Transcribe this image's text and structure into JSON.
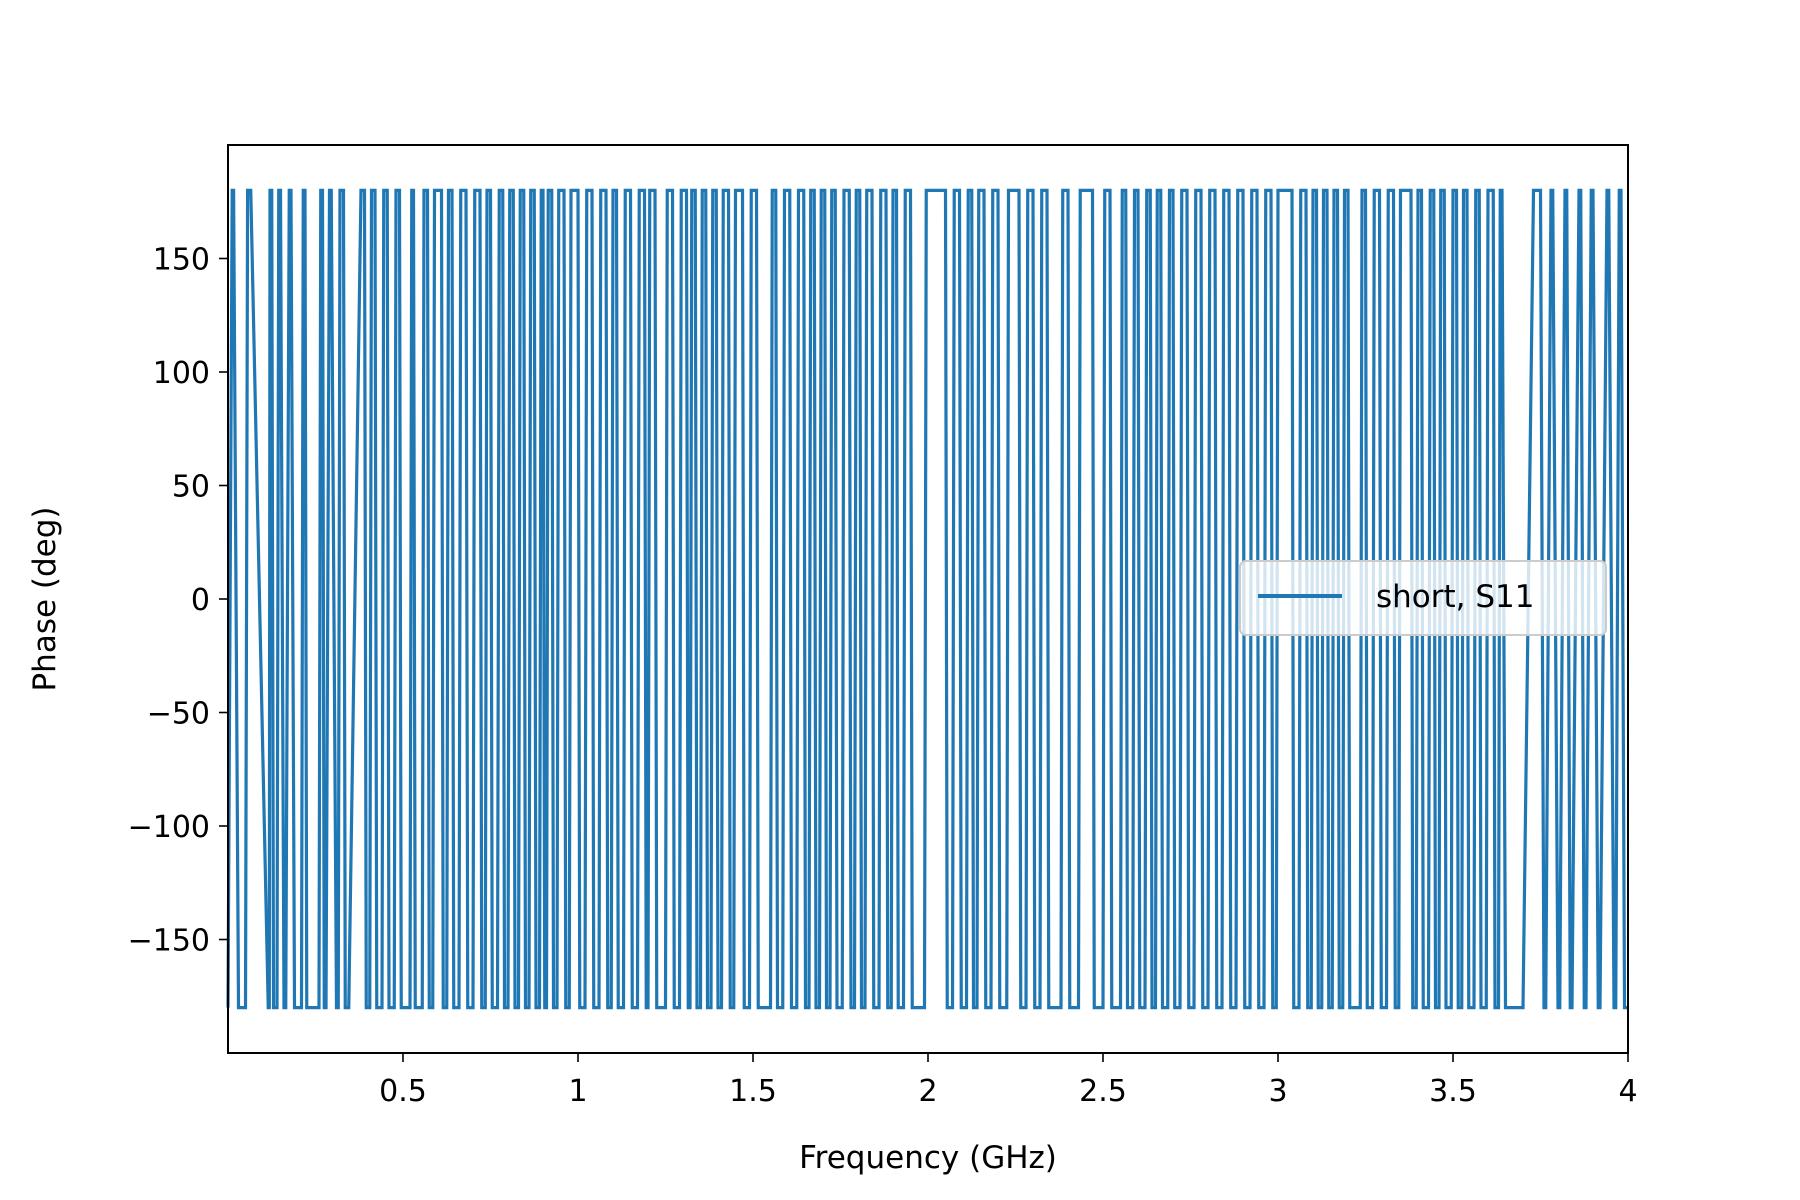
{
  "chart_data": {
    "type": "line",
    "title": "",
    "xlabel": "Frequency (GHz)",
    "ylabel": "Phase (deg)",
    "xlim": [
      0.0,
      4.0
    ],
    "ylim": [
      -200,
      200
    ],
    "x_ticks": [
      {
        "value": 0.5,
        "label": "0.5"
      },
      {
        "value": 1.0,
        "label": "1"
      },
      {
        "value": 1.5,
        "label": "1.5"
      },
      {
        "value": 2.0,
        "label": "2"
      },
      {
        "value": 2.5,
        "label": "2.5"
      },
      {
        "value": 3.0,
        "label": "3"
      },
      {
        "value": 3.5,
        "label": "3.5"
      },
      {
        "value": 4.0,
        "label": "4"
      }
    ],
    "y_ticks": [
      {
        "value": 150,
        "label": "150"
      },
      {
        "value": 100,
        "label": "100"
      },
      {
        "value": 50,
        "label": "50"
      },
      {
        "value": 0,
        "label": "0"
      },
      {
        "value": -50,
        "label": "−50"
      },
      {
        "value": -100,
        "label": "−100"
      },
      {
        "value": -150,
        "label": "−150"
      }
    ],
    "grid": false,
    "legend": {
      "placement": "center-right"
    },
    "series": [
      {
        "name": "short, S11",
        "color": "#1f77b4",
        "x": [
          0.0,
          0.012,
          0.016,
          0.03,
          0.05,
          0.056,
          0.065,
          0.115,
          0.118,
          0.12,
          0.125,
          0.13,
          0.14,
          0.145,
          0.15,
          0.16,
          0.165,
          0.175,
          0.18,
          0.19,
          0.21,
          0.215,
          0.22,
          0.225,
          0.26,
          0.265,
          0.27,
          0.275,
          0.28,
          0.29,
          0.295,
          0.31,
          0.315,
          0.32,
          0.33,
          0.335,
          0.345,
          0.38,
          0.39,
          0.395,
          0.405,
          0.41,
          0.42,
          0.425,
          0.44,
          0.445,
          0.455,
          0.46,
          0.475,
          0.48,
          0.49,
          0.495,
          0.52,
          0.525,
          0.53,
          0.535,
          0.555,
          0.56,
          0.57,
          0.575,
          0.585,
          0.59,
          0.61,
          0.615,
          0.625,
          0.63,
          0.64,
          0.645,
          0.66,
          0.665,
          0.68,
          0.685,
          0.7,
          0.705,
          0.72,
          0.725,
          0.735,
          0.74,
          0.75,
          0.755,
          0.77,
          0.775,
          0.785,
          0.79,
          0.8,
          0.805,
          0.815,
          0.82,
          0.83,
          0.835,
          0.845,
          0.85,
          0.86,
          0.865,
          0.875,
          0.88,
          0.89,
          0.895,
          0.9,
          0.905,
          0.91,
          0.915,
          0.925,
          0.93,
          0.94,
          0.945,
          0.96,
          0.965,
          0.975,
          0.98,
          1.0,
          1.005,
          1.02,
          1.025,
          1.04,
          1.045,
          1.06,
          1.065,
          1.08,
          1.085,
          1.095,
          1.1,
          1.11,
          1.115,
          1.13,
          1.135,
          1.15,
          1.155,
          1.17,
          1.175,
          1.19,
          1.195,
          1.2,
          1.205,
          1.22,
          1.225,
          1.25,
          1.255,
          1.27,
          1.275,
          1.29,
          1.295,
          1.31,
          1.315,
          1.32,
          1.325,
          1.335,
          1.34,
          1.35,
          1.355,
          1.365,
          1.37,
          1.38,
          1.385,
          1.395,
          1.4,
          1.41,
          1.415,
          1.43,
          1.435,
          1.445,
          1.45,
          1.47,
          1.475,
          1.49,
          1.495,
          1.51,
          1.515,
          1.55,
          1.555,
          1.565,
          1.57,
          1.585,
          1.59,
          1.605,
          1.61,
          1.625,
          1.63,
          1.645,
          1.65,
          1.66,
          1.665,
          1.675,
          1.68,
          1.69,
          1.695,
          1.705,
          1.71,
          1.72,
          1.725,
          1.735,
          1.74,
          1.755,
          1.76,
          1.775,
          1.78,
          1.79,
          1.795,
          1.805,
          1.81,
          1.82,
          1.825,
          1.84,
          1.845,
          1.86,
          1.865,
          1.88,
          1.885,
          1.895,
          1.9,
          1.91,
          1.915,
          1.93,
          1.935,
          1.95,
          1.955,
          1.99,
          1.995,
          2.05,
          2.055,
          2.07,
          2.075,
          2.09,
          2.095,
          2.11,
          2.115,
          2.125,
          2.13,
          2.14,
          2.145,
          2.16,
          2.165,
          2.18,
          2.185,
          2.2,
          2.205,
          2.225,
          2.23,
          2.26,
          2.265,
          2.28,
          2.285,
          2.3,
          2.305,
          2.32,
          2.325,
          2.34,
          2.345,
          2.38,
          2.385,
          2.4,
          2.405,
          2.43,
          2.435,
          2.47,
          2.475,
          2.5,
          2.505,
          2.52,
          2.525,
          2.55,
          2.555,
          2.565,
          2.57,
          2.585,
          2.59,
          2.6,
          2.605,
          2.62,
          2.625,
          2.635,
          2.64,
          2.65,
          2.655,
          2.665,
          2.67,
          2.685,
          2.69,
          2.7,
          2.705,
          2.72,
          2.725,
          2.74,
          2.745,
          2.76,
          2.765,
          2.78,
          2.785,
          2.8,
          2.805,
          2.82,
          2.825,
          2.84,
          2.845,
          2.86,
          2.865,
          2.88,
          2.885,
          2.9,
          2.905,
          2.92,
          2.925,
          2.94,
          2.945,
          2.96,
          2.965,
          2.98,
          2.985,
          2.995,
          3.0,
          3.04,
          3.045,
          3.06,
          3.065,
          3.08,
          3.085,
          3.095,
          3.1,
          3.11,
          3.115,
          3.125,
          3.13,
          3.14,
          3.145,
          3.155,
          3.16,
          3.17,
          3.175,
          3.185,
          3.19,
          3.2,
          3.205,
          3.235,
          3.24,
          3.25,
          3.255,
          3.27,
          3.275,
          3.29,
          3.295,
          3.31,
          3.315,
          3.33,
          3.335,
          3.345,
          3.35,
          3.38,
          3.385,
          3.395,
          3.4,
          3.41,
          3.415,
          3.43,
          3.435,
          3.445,
          3.45,
          3.46,
          3.465,
          3.475,
          3.48,
          3.495,
          3.5,
          3.51,
          3.515,
          3.525,
          3.53,
          3.54,
          3.545,
          3.56,
          3.565,
          3.575,
          3.58,
          3.595,
          3.6,
          3.615,
          3.62,
          3.63,
          3.635,
          3.64,
          3.65,
          3.7,
          3.73,
          3.75,
          3.76,
          3.765,
          3.78,
          3.785,
          3.8,
          3.805,
          3.82,
          3.825,
          3.835,
          3.84,
          3.86,
          3.865,
          3.875,
          3.88,
          3.895,
          3.9,
          3.915,
          3.92,
          3.94,
          3.945,
          3.96,
          3.965,
          3.975,
          3.98,
          3.99,
          4.0
        ],
        "y": [
          -180,
          180,
          180,
          -180,
          -180,
          180,
          180,
          -180,
          -180,
          180,
          180,
          -180,
          -180,
          180,
          180,
          -180,
          -180,
          180,
          180,
          -180,
          -180,
          180,
          180,
          -180,
          -180,
          180,
          180,
          -180,
          -180,
          180,
          180,
          -180,
          -180,
          180,
          180,
          -180,
          -180,
          180,
          180,
          -180,
          -180,
          180,
          180,
          -180,
          -180,
          180,
          180,
          -180,
          -180,
          180,
          180,
          -180,
          -180,
          180,
          180,
          -180,
          -180,
          180,
          180,
          -180,
          -180,
          180,
          180,
          -180,
          -180,
          180,
          180,
          -180,
          -180,
          180,
          180,
          -180,
          -180,
          180,
          180,
          -180,
          -180,
          180,
          180,
          -180,
          -180,
          180,
          180,
          -180,
          -180,
          180,
          180,
          -180,
          -180,
          180,
          180,
          -180,
          -180,
          180,
          180,
          -180,
          -180,
          180,
          180,
          -180,
          -180,
          180,
          180,
          -180,
          -180,
          180,
          180,
          -180,
          -180,
          180,
          180,
          -180,
          -180,
          180,
          180,
          -180,
          -180,
          180,
          180,
          -180,
          -180,
          180,
          180,
          -180,
          -180,
          180,
          180,
          -180,
          -180,
          180,
          180,
          -180,
          -180,
          180,
          180,
          -180,
          -180,
          180,
          180,
          -180,
          -180,
          180,
          180,
          -180,
          -180,
          180,
          180,
          -180,
          -180,
          180,
          180,
          -180,
          -180,
          180,
          180,
          -180,
          -180,
          180,
          180,
          -180,
          -180,
          180,
          180,
          -180,
          -180,
          180,
          180,
          -180,
          -180,
          180,
          180,
          -180,
          -180,
          180,
          180,
          -180,
          -180,
          180,
          180,
          -180,
          -180,
          180,
          180,
          -180,
          -180,
          180,
          180,
          -180,
          -180,
          180,
          180,
          -180,
          -180,
          180,
          180,
          -180,
          -180,
          180,
          180,
          -180,
          -180,
          180,
          180,
          -180,
          -180,
          180,
          180,
          -180,
          -180,
          180,
          180,
          -180,
          -180,
          180,
          180,
          -180,
          -180,
          180,
          180,
          -180,
          -180,
          180,
          180,
          -180,
          -180,
          180,
          180,
          -180,
          -180,
          180,
          180,
          -180,
          -180,
          180,
          180,
          -180,
          -180,
          180,
          180,
          -180,
          -180,
          180,
          180,
          -180,
          -180,
          180,
          180,
          -180,
          -180,
          180,
          180,
          -180,
          -180,
          180,
          180,
          -180,
          -180,
          180,
          180,
          -180,
          -180,
          180,
          180,
          -180,
          -180,
          180,
          180,
          -180,
          -180,
          180,
          180,
          -180,
          -180,
          180,
          180,
          -180,
          -180,
          180,
          180,
          -180,
          -180,
          180,
          180,
          -180,
          -180,
          180,
          180,
          -180,
          -180,
          180,
          180,
          -180,
          -180,
          180,
          180,
          -180,
          -180,
          180,
          180,
          -180,
          -180,
          180,
          180,
          -180,
          -180,
          180,
          180,
          -180,
          -180,
          180,
          180,
          -180,
          -180,
          180,
          180,
          -180,
          -180,
          180,
          180,
          -180,
          -180,
          180,
          180,
          -180,
          -180,
          180,
          180,
          -180,
          -180,
          180,
          180,
          -180,
          -180,
          180,
          180,
          -180,
          -180,
          180,
          180,
          -180,
          -180,
          180,
          180,
          -180,
          -180,
          180,
          180,
          -180,
          -180,
          180,
          180,
          -180,
          -180,
          180,
          180,
          -180,
          -180,
          180,
          180,
          -180,
          -180,
          180,
          180,
          -180,
          -180,
          180,
          180,
          -180,
          -180,
          180,
          180,
          -180,
          -180,
          180,
          180,
          -180,
          -180,
          180,
          180,
          -180,
          -180,
          180,
          180,
          -180,
          -180,
          180,
          180,
          -180,
          -180,
          180,
          180,
          -180,
          -180,
          180,
          180,
          -180,
          -180,
          180,
          180,
          -180,
          -180,
          180,
          180,
          -180,
          -180,
          180,
          180,
          -180,
          -180
        ]
      }
    ]
  }
}
